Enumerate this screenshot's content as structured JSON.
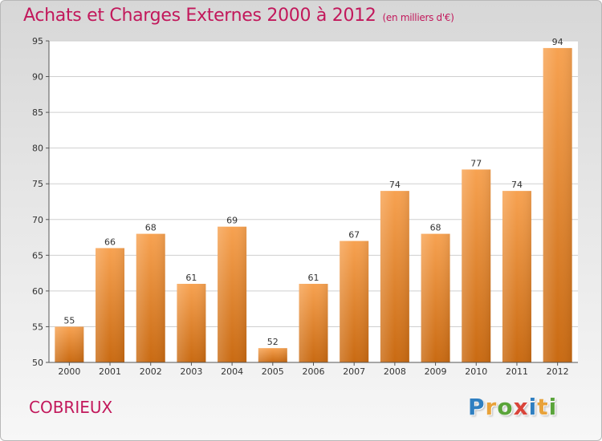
{
  "header": {
    "title": "Achats et Charges Externes 2000 à 2012",
    "unit": "(en milliers d'€)"
  },
  "footer": {
    "commune": "COBRIEUX",
    "logo": "Proxiti",
    "logo_letters": [
      {
        "char": "P",
        "color": "#2f7fc1"
      },
      {
        "char": "r",
        "color": "#e8a23a"
      },
      {
        "char": "o",
        "color": "#5aa43a"
      },
      {
        "char": "x",
        "color": "#d9443a"
      },
      {
        "char": "i",
        "color": "#2f7fc1"
      },
      {
        "char": "t",
        "color": "#e8a23a"
      },
      {
        "char": "i",
        "color": "#5aa43a"
      }
    ]
  },
  "colors": {
    "title": "#c2185b",
    "bar_top": "#f7a251",
    "bar_bottom": "#c96a12"
  },
  "chart_data": {
    "type": "bar",
    "title": "Achats et Charges Externes 2000 à 2012",
    "subtitle": "(en milliers d'€)",
    "xlabel": "",
    "ylabel": "",
    "categories": [
      "2000",
      "2001",
      "2002",
      "2003",
      "2004",
      "2005",
      "2006",
      "2007",
      "2008",
      "2009",
      "2010",
      "2011",
      "2012"
    ],
    "values": [
      55,
      66,
      68,
      61,
      69,
      52,
      61,
      67,
      74,
      68,
      77,
      74,
      94
    ],
    "ylim": [
      50,
      95
    ],
    "yticks": [
      50,
      55,
      60,
      65,
      70,
      75,
      80,
      85,
      90,
      95
    ],
    "grid": true,
    "legend": "none"
  }
}
